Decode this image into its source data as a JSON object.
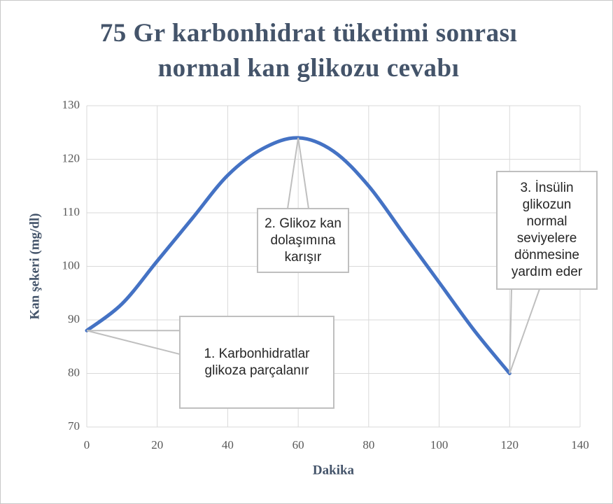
{
  "chart_data": {
    "type": "line",
    "title": "75 Gr karbonhidrat tüketimi sonrası normal kan glikozu cevabı",
    "x_label": "Dakika",
    "y_label": "Kan şekeri (mg/dl)",
    "x": [
      0,
      10,
      20,
      30,
      40,
      50,
      60,
      70,
      80,
      90,
      100,
      110,
      120
    ],
    "series": [
      {
        "name": "Kan şekeri",
        "color": "#4472c4",
        "values": [
          88,
          93,
          101,
          109,
          117,
          122,
          124,
          121.5,
          115,
          106,
          97,
          88,
          80
        ]
      }
    ],
    "xlim": [
      0,
      140
    ],
    "xticks": [
      0,
      20,
      40,
      60,
      80,
      100,
      120,
      140
    ],
    "ylim": [
      70,
      130
    ],
    "yticks": [
      70,
      80,
      90,
      100,
      110,
      120,
      130
    ],
    "grid": true,
    "annotations": [
      "1. Karbonhidratlar glikoza parçalanır",
      "2. Glikoz kan dolaşımına karışır",
      "3. İnsülin glikozun normal seviyelere dönmesine yardım eder"
    ]
  }
}
